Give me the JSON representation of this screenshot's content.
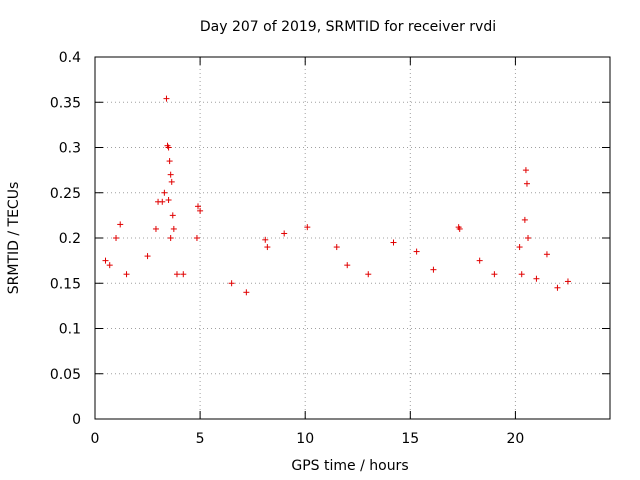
{
  "chart_data": {
    "type": "scatter",
    "title": "Day 207 of 2019, SRMTID for receiver rvdi",
    "xlabel": "GPS time / hours",
    "ylabel": "SRMTID / TECUs",
    "xlim": [
      0,
      24.5
    ],
    "ylim": [
      0,
      0.4
    ],
    "xticks": [
      0,
      5,
      10,
      15,
      20
    ],
    "xtick_labels": [
      "0",
      "5",
      "10",
      "15",
      "20"
    ],
    "yticks": [
      0,
      0.05,
      0.1,
      0.15,
      0.2,
      0.25,
      0.3,
      0.35,
      0.4
    ],
    "ytick_labels": [
      "0",
      "0.05",
      "0.1",
      "0.15",
      "0.2",
      "0.25",
      "0.3",
      "0.35",
      "0.4"
    ],
    "grid": true,
    "marker": "plus",
    "color": "#e00000",
    "series": [
      {
        "name": "SRMTID",
        "points": [
          [
            3.4,
            0.354
          ],
          [
            3.45,
            0.302
          ],
          [
            3.5,
            0.3
          ],
          [
            3.55,
            0.285
          ],
          [
            3.6,
            0.27
          ],
          [
            3.65,
            0.262
          ],
          [
            3.5,
            0.242
          ],
          [
            3.7,
            0.225
          ],
          [
            3.75,
            0.21
          ],
          [
            3.6,
            0.2
          ],
          [
            3.3,
            0.25
          ],
          [
            3.2,
            0.24
          ],
          [
            2.9,
            0.21
          ],
          [
            3.0,
            0.24
          ],
          [
            4.9,
            0.235
          ],
          [
            5.0,
            0.23
          ],
          [
            4.85,
            0.2
          ],
          [
            20.5,
            0.275
          ],
          [
            20.55,
            0.26
          ],
          [
            20.45,
            0.22
          ],
          [
            20.6,
            0.2
          ],
          [
            20.2,
            0.19
          ],
          [
            20.3,
            0.16
          ],
          [
            10.1,
            0.212
          ],
          [
            9.0,
            0.205
          ],
          [
            8.1,
            0.198
          ],
          [
            8.2,
            0.19
          ],
          [
            1.0,
            0.2
          ],
          [
            1.2,
            0.215
          ],
          [
            14.2,
            0.195
          ],
          [
            17.3,
            0.212
          ],
          [
            17.35,
            0.21
          ],
          [
            11.5,
            0.19
          ],
          [
            15.3,
            0.185
          ],
          [
            22.5,
            0.152
          ],
          [
            21.5,
            0.182
          ],
          [
            0.5,
            0.175
          ],
          [
            0.7,
            0.17
          ],
          [
            1.5,
            0.16
          ],
          [
            2.5,
            0.18
          ],
          [
            3.9,
            0.16
          ],
          [
            4.2,
            0.16
          ],
          [
            6.5,
            0.15
          ],
          [
            7.2,
            0.14
          ],
          [
            12.0,
            0.17
          ],
          [
            13.0,
            0.16
          ],
          [
            16.1,
            0.165
          ],
          [
            18.3,
            0.175
          ],
          [
            19.0,
            0.16
          ],
          [
            21.0,
            0.155
          ],
          [
            22.0,
            0.145
          ]
        ]
      }
    ]
  }
}
